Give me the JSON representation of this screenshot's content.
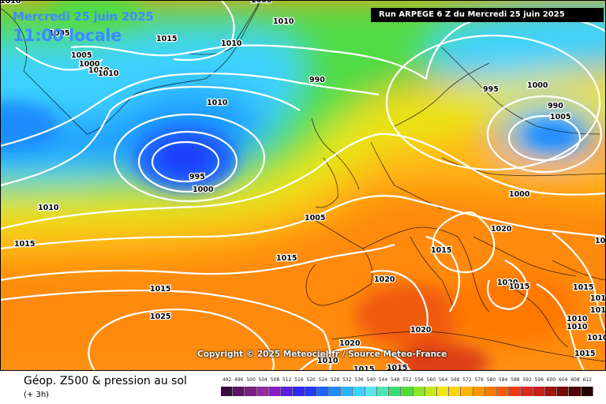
{
  "header": {
    "date": "Mercredi 25 juin 2025",
    "time": "11:00 locale",
    "run": "Run ARPEGE 6 Z du Mercredi 25 juin 2025"
  },
  "copyright": "Copyright © 2025 Meteociel.fr / Source Meteo-France",
  "footer": {
    "title": "Géop. Z500 & pression au sol",
    "subtitle": "(+ 3h)"
  },
  "scale": {
    "labels": [
      "492",
      "496",
      "500",
      "504",
      "508",
      "512",
      "516",
      "520",
      "524",
      "528",
      "532",
      "536",
      "540",
      "544",
      "548",
      "552",
      "556",
      "560",
      "564",
      "568",
      "572",
      "576",
      "580",
      "584",
      "588",
      "592",
      "596",
      "600",
      "604",
      "608",
      "612"
    ],
    "colors": [
      "#3a0a3e",
      "#5a1460",
      "#7a1e82",
      "#9628a4",
      "#8a1cc8",
      "#5a1ee0",
      "#3228f0",
      "#1e3cfa",
      "#1e64ff",
      "#1e8cff",
      "#28b4ff",
      "#3cd2ff",
      "#5ae6f0",
      "#50e6b4",
      "#3cdc78",
      "#50dc3c",
      "#8ce628",
      "#c8e61e",
      "#f0e614",
      "#ffd20a",
      "#ffb400",
      "#ff9600",
      "#ff7800",
      "#ff5a0a",
      "#f03c14",
      "#dc281e",
      "#c81e1e",
      "#a01414",
      "#780a0a",
      "#500505",
      "#280000"
    ]
  },
  "isobars": [
    {
      "label": "1010",
      "group": "top-left"
    },
    {
      "label": "1005",
      "group": "top"
    },
    {
      "label": "1010",
      "group": "top"
    },
    {
      "label": "1015",
      "group": "greenland"
    },
    {
      "label": "1005",
      "group": "greenland"
    },
    {
      "label": "1010",
      "group": "greenland"
    },
    {
      "label": "1010",
      "group": "greenland"
    },
    {
      "label": "1010",
      "group": "greenland"
    },
    {
      "label": "1005",
      "group": "greenland"
    },
    {
      "label": "1000",
      "group": "atlantic-low"
    },
    {
      "label": "1010",
      "group": "north-sea"
    },
    {
      "label": "990",
      "group": "atlantic-low"
    },
    {
      "label": "995",
      "group": "atlantic-low"
    },
    {
      "label": "1000",
      "group": "scandinavia"
    },
    {
      "label": "1000",
      "group": "scandinavia"
    },
    {
      "label": "995",
      "group": "scandinavia"
    },
    {
      "label": "990",
      "group": "scandinavia"
    },
    {
      "label": "1005",
      "group": "europe"
    },
    {
      "label": "1000",
      "group": "west"
    },
    {
      "label": "1010",
      "group": "europe"
    },
    {
      "label": "1005",
      "group": "west"
    },
    {
      "label": "1015",
      "group": "europe"
    },
    {
      "label": "1015",
      "group": "alps"
    },
    {
      "label": "1020",
      "group": "alps"
    },
    {
      "label": "1015",
      "group": "atlantic"
    },
    {
      "label": "1015",
      "group": "iberia"
    },
    {
      "label": "1020",
      "group": "atlantic"
    },
    {
      "label": "1025",
      "group": "atlantic"
    },
    {
      "label": "1020",
      "group": "balkans"
    },
    {
      "label": "1015",
      "group": "balkans"
    },
    {
      "label": "1015",
      "group": "east"
    },
    {
      "label": "1015",
      "group": "east"
    },
    {
      "label": "1015",
      "group": "east"
    },
    {
      "label": "1010",
      "group": "east"
    },
    {
      "label": "1010",
      "group": "east"
    },
    {
      "label": "1010",
      "group": "east"
    },
    {
      "label": "1015",
      "group": "east"
    },
    {
      "label": "1005",
      "group": "east"
    },
    {
      "label": "1020",
      "group": "africa"
    },
    {
      "label": "1020",
      "group": "africa"
    },
    {
      "label": "1010",
      "group": "africa"
    },
    {
      "label": "1015",
      "group": "africa"
    },
    {
      "label": "1015",
      "group": "africa"
    }
  ]
}
